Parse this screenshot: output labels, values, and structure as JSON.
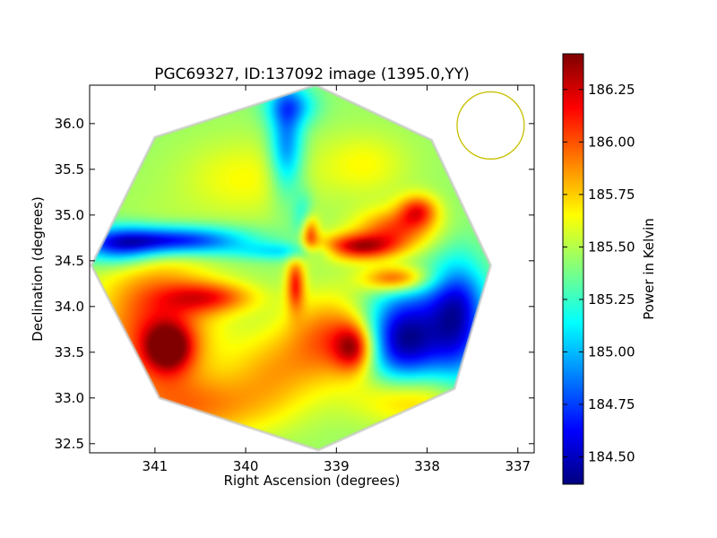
{
  "chart_data": {
    "type": "heatmap",
    "title": "PGC69327, ID:137092 image (1395.0,YY)",
    "xlabel": "Right Ascension (degrees)",
    "ylabel": "Declination (degrees)",
    "xlim": [
      341.72,
      336.82
    ],
    "ylim": [
      32.4,
      36.42
    ],
    "x_ticks": [
      341,
      340,
      339,
      338,
      337
    ],
    "x_tick_labels": [
      "341",
      "340",
      "339",
      "338",
      "337"
    ],
    "y_ticks": [
      32.5,
      33.0,
      33.5,
      34.0,
      34.5,
      35.0,
      35.5,
      36.0
    ],
    "y_tick_labels": [
      "32.5",
      "33.0",
      "33.5",
      "34.0",
      "34.5",
      "35.0",
      "35.5",
      "36.0"
    ],
    "colorbar": {
      "label": "Power in Kelvin",
      "colormap": "jet",
      "range": [
        184.37,
        186.42
      ],
      "ticks": [
        184.5,
        184.75,
        185.0,
        185.25,
        185.5,
        185.75,
        186.0,
        186.25
      ],
      "tick_labels": [
        "184.50",
        "184.75",
        "185.00",
        "185.25",
        "185.50",
        "185.75",
        "186.00",
        "186.25"
      ]
    },
    "baseline": 185.45,
    "footprint_polygon": [
      [
        339.23,
        36.42
      ],
      [
        337.95,
        35.82
      ],
      [
        337.3,
        34.45
      ],
      [
        337.7,
        33.1
      ],
      [
        339.2,
        32.43
      ],
      [
        340.95,
        33.0
      ],
      [
        341.7,
        34.45
      ],
      [
        341.0,
        35.85
      ]
    ],
    "features": [
      {
        "ra": 338.25,
        "dec": 33.65,
        "value": 184.38,
        "sra": 0.32,
        "sdec": 0.35
      },
      {
        "ra": 337.65,
        "dec": 33.85,
        "value": 184.65,
        "sra": 0.22,
        "sdec": 0.45
      },
      {
        "ra": 340.8,
        "dec": 34.72,
        "value": 184.55,
        "sra": 0.55,
        "sdec": 0.11
      },
      {
        "ra": 341.4,
        "dec": 34.66,
        "value": 184.85,
        "sra": 0.3,
        "sdec": 0.15
      },
      {
        "ra": 339.55,
        "dec": 34.6,
        "value": 185.1,
        "sra": 0.38,
        "sdec": 0.07
      },
      {
        "ra": 339.55,
        "dec": 35.75,
        "value": 184.85,
        "sra": 0.13,
        "sdec": 0.38
      },
      {
        "ra": 339.5,
        "dec": 36.2,
        "value": 185.0,
        "sra": 0.2,
        "sdec": 0.15
      },
      {
        "ra": 339.35,
        "dec": 34.93,
        "value": 185.05,
        "sra": 0.08,
        "sdec": 0.2
      },
      {
        "ra": 338.75,
        "dec": 34.65,
        "value": 186.3,
        "sra": 0.3,
        "sdec": 0.1
      },
      {
        "ra": 338.35,
        "dec": 34.85,
        "value": 186.0,
        "sra": 0.3,
        "sdec": 0.15
      },
      {
        "ra": 338.1,
        "dec": 35.05,
        "value": 186.05,
        "sra": 0.15,
        "sdec": 0.12
      },
      {
        "ra": 338.35,
        "dec": 34.3,
        "value": 186.1,
        "sra": 0.25,
        "sdec": 0.1
      },
      {
        "ra": 339.3,
        "dec": 34.8,
        "value": 186.2,
        "sra": 0.07,
        "sdec": 0.15
      },
      {
        "ra": 339.05,
        "dec": 33.65,
        "value": 186.0,
        "sra": 0.35,
        "sdec": 0.32
      },
      {
        "ra": 338.8,
        "dec": 33.55,
        "value": 186.15,
        "sra": 0.15,
        "sdec": 0.18
      },
      {
        "ra": 339.45,
        "dec": 34.25,
        "value": 186.1,
        "sra": 0.07,
        "sdec": 0.2
      },
      {
        "ra": 340.4,
        "dec": 34.1,
        "value": 186.0,
        "sra": 0.35,
        "sdec": 0.12
      },
      {
        "ra": 340.85,
        "dec": 33.55,
        "value": 186.3,
        "sra": 0.18,
        "sdec": 0.18
      },
      {
        "ra": 341.0,
        "dec": 33.8,
        "value": 186.05,
        "sra": 0.45,
        "sdec": 0.55
      },
      {
        "ra": 340.5,
        "dec": 32.9,
        "value": 185.85,
        "sra": 0.6,
        "sdec": 0.25
      },
      {
        "ra": 338.2,
        "dec": 33.0,
        "value": 185.85,
        "sra": 0.4,
        "sdec": 0.2
      },
      {
        "ra": 339.7,
        "dec": 33.3,
        "value": 185.75,
        "sra": 0.35,
        "sdec": 0.3
      },
      {
        "ra": 340.0,
        "dec": 35.4,
        "value": 185.65,
        "sra": 0.5,
        "sdec": 0.3
      },
      {
        "ra": 338.7,
        "dec": 35.55,
        "value": 185.65,
        "sra": 0.35,
        "sdec": 0.25
      },
      {
        "ra": 337.8,
        "dec": 34.1,
        "value": 185.3,
        "sra": 0.3,
        "sdec": 0.2
      }
    ],
    "circle": {
      "ra": 337.3,
      "dec": 35.98,
      "radius_deg": 0.37,
      "color": "#c8c000"
    },
    "grid": false,
    "legend": "none"
  }
}
